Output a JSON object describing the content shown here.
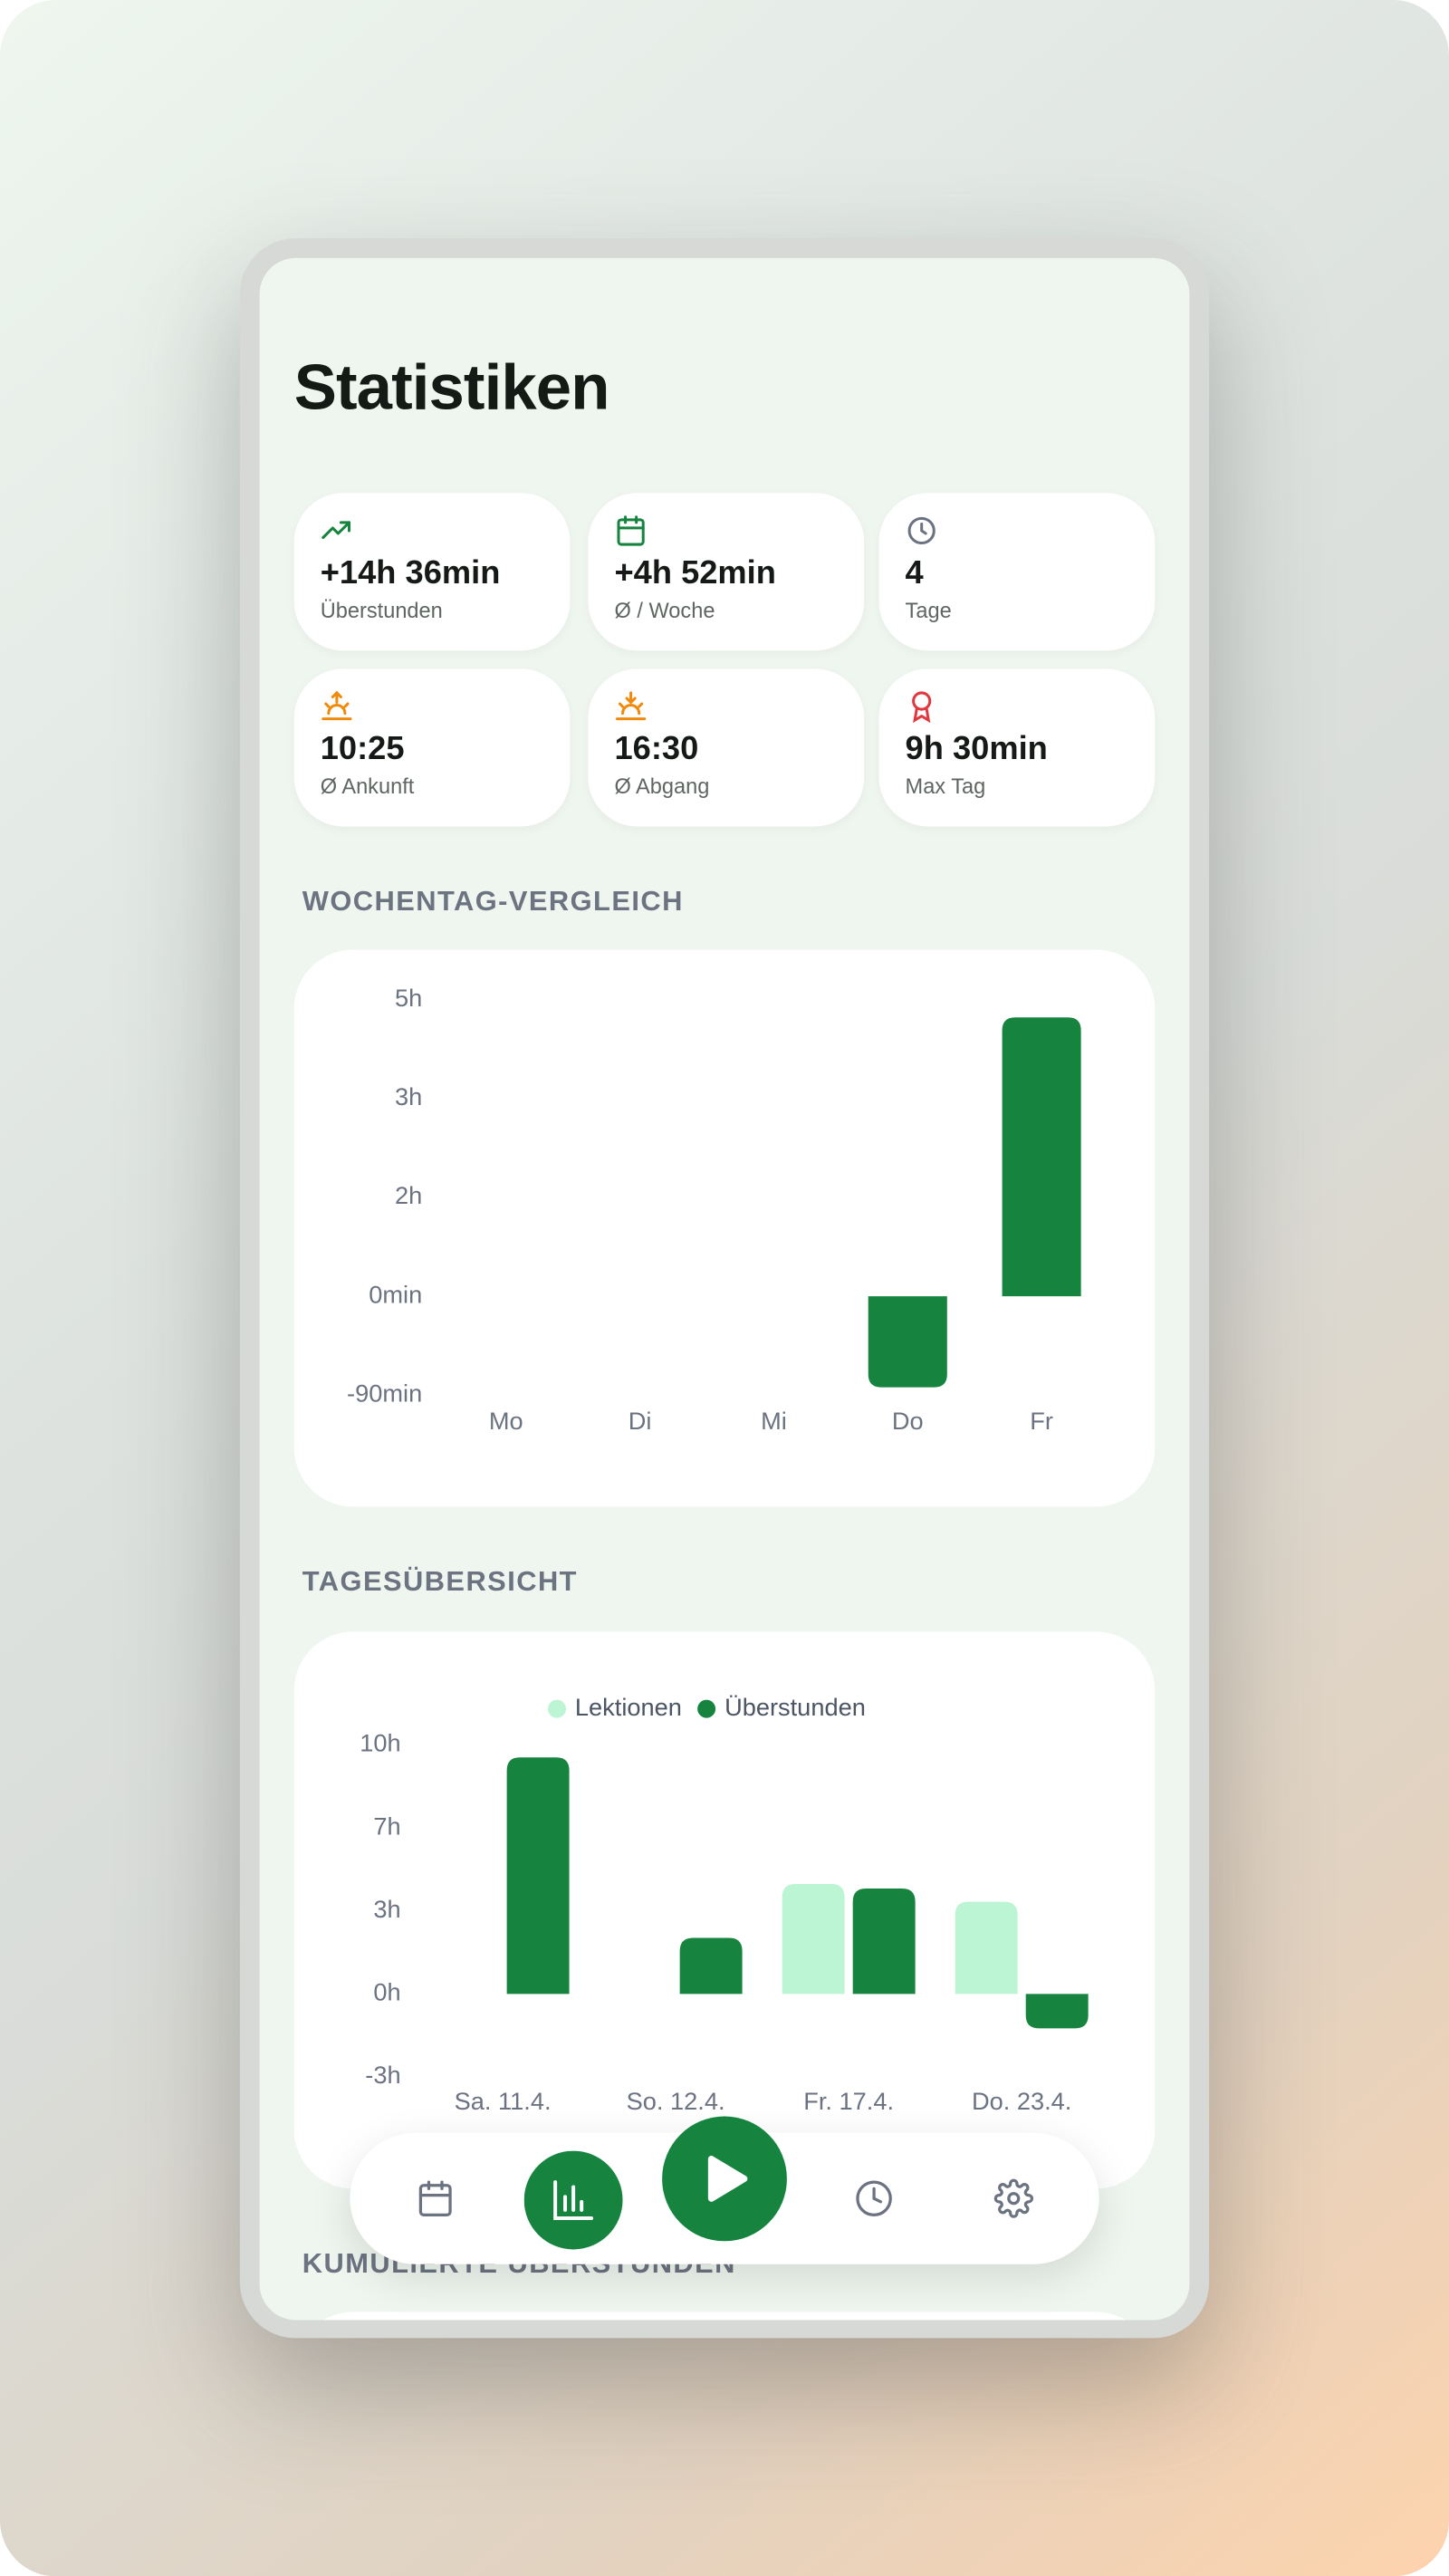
{
  "header": {
    "title": "Statistiken"
  },
  "stats": [
    {
      "value": "+14h 36min",
      "label": "Überstunden"
    },
    {
      "value": "+4h 52min",
      "label": "Ø / Woche"
    },
    {
      "value": "4",
      "label": "Tage"
    },
    {
      "value": "10:25",
      "label": "Ø Ankunft"
    },
    {
      "value": "16:30",
      "label": "Ø Abgang"
    },
    {
      "value": "9h 30min",
      "label": "Max Tag"
    }
  ],
  "chart_data": [
    {
      "type": "bar",
      "title": "WOCHENTAG-VERGLEICH",
      "categories": [
        "Mo",
        "Di",
        "Mi",
        "Do",
        "Fr"
      ],
      "values": [
        0,
        0,
        0,
        -83,
        254
      ],
      "color": "#16843f",
      "ylim": [
        -90,
        270
      ],
      "yticks": [
        {
          "value": -90,
          "label": "-90min"
        },
        {
          "value": 0,
          "label": "0min"
        },
        {
          "value": 90,
          "label": "2h"
        },
        {
          "value": 180,
          "label": "3h"
        },
        {
          "value": 270,
          "label": "5h"
        }
      ]
    },
    {
      "type": "bar",
      "title": "TAGESÜBERSICHT",
      "categories": [
        "Sa. 11.4.",
        "So. 12.4.",
        "Fr. 17.4.",
        "Do. 23.4."
      ],
      "series": [
        {
          "name": "Lektionen",
          "color": "#bbf5d3",
          "values": [
            0,
            0,
            265,
            222
          ]
        },
        {
          "name": "Überstunden",
          "color": "#16843f",
          "values": [
            570,
            135,
            254,
            -83
          ]
        }
      ],
      "ylim": [
        -200,
        600
      ],
      "yticks": [
        {
          "value": -200,
          "label": "-3h"
        },
        {
          "value": 0,
          "label": "0h"
        },
        {
          "value": 200,
          "label": "3h"
        },
        {
          "value": 400,
          "label": "7h"
        },
        {
          "value": 600,
          "label": "10h"
        }
      ]
    }
  ],
  "next_section": {
    "title": "KUMULIERTE ÜBERSTUNDEN"
  }
}
